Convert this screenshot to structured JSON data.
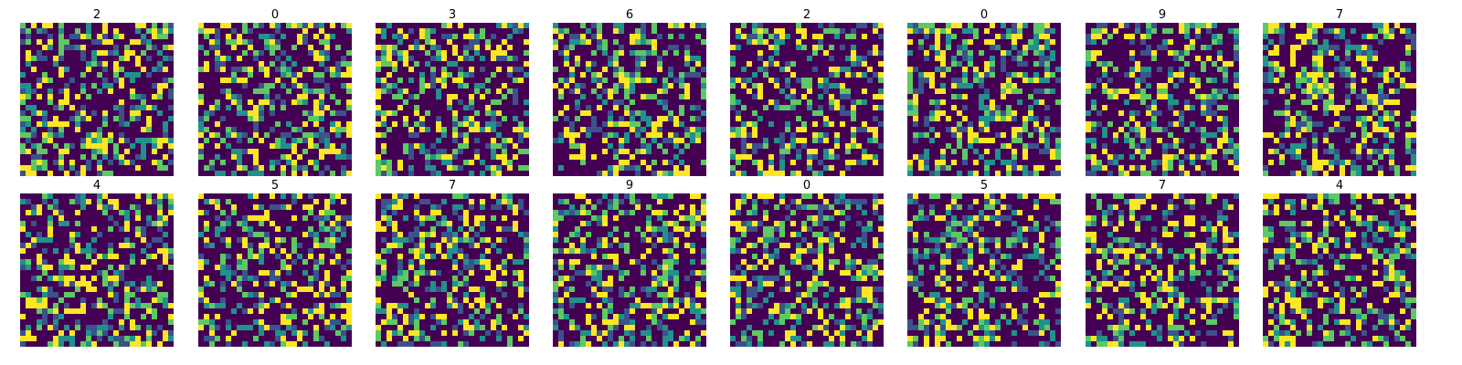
{
  "chart_data": {
    "type": "heatmap",
    "layout": {
      "rows": 2,
      "cols": 8
    },
    "grid_size": 28,
    "colormap": "viridis",
    "colorbar": false,
    "axes_visible": false,
    "panels": [
      {
        "title": "2"
      },
      {
        "title": "0"
      },
      {
        "title": "3"
      },
      {
        "title": "6"
      },
      {
        "title": "2"
      },
      {
        "title": "0"
      },
      {
        "title": "9"
      },
      {
        "title": "7"
      },
      {
        "title": "4"
      },
      {
        "title": "5"
      },
      {
        "title": "7"
      },
      {
        "title": "9"
      },
      {
        "title": "0"
      },
      {
        "title": "5"
      },
      {
        "title": "7"
      },
      {
        "title": "4"
      }
    ],
    "palette": [
      "#440154",
      "#3b528b",
      "#21918c",
      "#5ec962",
      "#fde725"
    ]
  }
}
